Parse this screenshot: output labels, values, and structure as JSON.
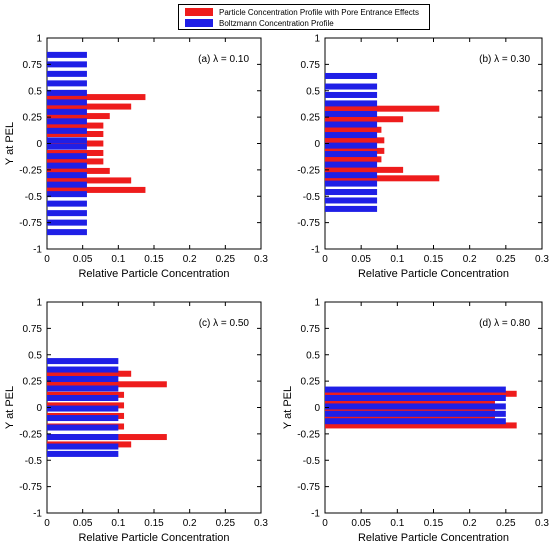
{
  "colors": {
    "pel": "#ee1c1c",
    "boltzmann": "#1f1fe6"
  },
  "legend": {
    "position": "top-center",
    "pel_label": "Particle Concentration Profile with Pore Entrance Effects",
    "boltzmann_label": "Boltzmann Concentration Profile"
  },
  "chart_data": [
    {
      "type": "bar",
      "orientation": "horizontal",
      "annotation": "(a) λ = 0.10",
      "xlabel": "Relative Particle Concentration",
      "ylabel": "Y at PEL",
      "xlim": [
        0,
        0.3
      ],
      "ylim": [
        -1,
        1
      ],
      "xticks": [
        "0",
        "0.05",
        "0.1",
        "0.15",
        "0.2",
        "0.25",
        "0.3"
      ],
      "yticks": [
        "1",
        "0.75",
        "0.5",
        "0.25",
        "0",
        "-0.25",
        "-0.5",
        "-0.75",
        "-1"
      ],
      "series": [
        {
          "name": "Particle Concentration Profile with Pore Entrance Effects",
          "y": [
            0.44,
            0.35,
            0.26,
            0.17,
            0.09,
            0.0,
            -0.09,
            -0.17,
            -0.26,
            -0.35,
            -0.44
          ],
          "values": [
            0.138,
            0.118,
            0.088,
            0.079,
            0.079,
            0.079,
            0.079,
            0.079,
            0.088,
            0.118,
            0.138
          ]
        },
        {
          "name": "Boltzmann Concentration Profile",
          "y": [
            0.84,
            0.75,
            0.66,
            0.57,
            0.48,
            0.39,
            0.3,
            0.21,
            0.12,
            0.03,
            -0.03,
            -0.12,
            -0.21,
            -0.3,
            -0.39,
            -0.48,
            -0.57,
            -0.66,
            -0.75,
            -0.84
          ],
          "values": [
            0.056,
            0.056,
            0.056,
            0.056,
            0.056,
            0.056,
            0.056,
            0.056,
            0.056,
            0.056,
            0.056,
            0.056,
            0.056,
            0.056,
            0.056,
            0.056,
            0.056,
            0.056,
            0.056,
            0.056
          ]
        }
      ]
    },
    {
      "type": "bar",
      "orientation": "horizontal",
      "annotation": "(b) λ = 0.30",
      "xlabel": "Relative Particle Concentration",
      "ylabel": "",
      "xlim": [
        0,
        0.3
      ],
      "ylim": [
        -1,
        1
      ],
      "xticks": [
        "0",
        "0.05",
        "0.1",
        "0.15",
        "0.2",
        "0.25",
        "0.3"
      ],
      "yticks": [
        "1",
        "0.75",
        "0.5",
        "0.25",
        "0",
        "-0.25",
        "-0.5",
        "-0.75",
        "-1"
      ],
      "series": [
        {
          "name": "Particle Concentration Profile with Pore Entrance Effects",
          "y": [
            0.33,
            0.23,
            0.13,
            0.03,
            -0.07,
            -0.15,
            -0.25,
            -0.33
          ],
          "values": [
            0.158,
            0.108,
            0.078,
            0.082,
            0.082,
            0.078,
            0.108,
            0.158
          ]
        },
        {
          "name": "Boltzmann Concentration Profile",
          "y": [
            0.64,
            0.54,
            0.46,
            0.38,
            0.28,
            0.18,
            0.08,
            -0.02,
            -0.1,
            -0.2,
            -0.3,
            -0.38,
            -0.46,
            -0.54,
            -0.62
          ],
          "values": [
            0.072,
            0.072,
            0.072,
            0.072,
            0.072,
            0.072,
            0.072,
            0.072,
            0.072,
            0.072,
            0.072,
            0.072,
            0.072,
            0.072,
            0.072
          ]
        }
      ]
    },
    {
      "type": "bar",
      "orientation": "horizontal",
      "annotation": "(c) λ = 0.50",
      "xlabel": "Relative Particle Concentration",
      "ylabel": "Y at PEL",
      "xlim": [
        0,
        0.3
      ],
      "ylim": [
        -1,
        1
      ],
      "xticks": [
        "0",
        "0.05",
        "0.1",
        "0.15",
        "0.2",
        "0.25",
        "0.3"
      ],
      "yticks": [
        "1",
        "0.75",
        "0.5",
        "0.25",
        "0",
        "-0.25",
        "-0.5",
        "-0.75",
        "-1"
      ],
      "series": [
        {
          "name": "Particle Concentration Profile with Pore Entrance Effects",
          "y": [
            0.32,
            0.22,
            0.12,
            0.02,
            -0.08,
            -0.18,
            -0.28,
            -0.35
          ],
          "values": [
            0.118,
            0.168,
            0.108,
            0.108,
            0.108,
            0.108,
            0.168,
            0.118
          ]
        },
        {
          "name": "Boltzmann Concentration Profile",
          "y": [
            0.44,
            0.36,
            0.27,
            0.18,
            0.09,
            -0.01,
            -0.1,
            -0.19,
            -0.28,
            -0.37,
            -0.44
          ],
          "values": [
            0.1,
            0.1,
            0.1,
            0.1,
            0.1,
            0.1,
            0.1,
            0.1,
            0.1,
            0.1,
            0.1
          ]
        }
      ]
    },
    {
      "type": "bar",
      "orientation": "horizontal",
      "annotation": "(d) λ = 0.80",
      "xlabel": "Relative Particle Concentration",
      "ylabel": "Y at PEL",
      "xlim": [
        0,
        0.3
      ],
      "ylim": [
        -1,
        1
      ],
      "xticks": [
        "0",
        "0.05",
        "0.1",
        "0.15",
        "0.2",
        "0.25",
        "0.3"
      ],
      "yticks": [
        "1",
        "0.75",
        "0.5",
        "0.25",
        "0",
        "-0.25",
        "-0.5",
        "-0.75",
        "-1"
      ],
      "series": [
        {
          "name": "Particle Concentration Profile with Pore Entrance Effects",
          "y": [
            0.13,
            0.05,
            -0.02,
            -0.1,
            -0.17
          ],
          "values": [
            0.265,
            0.235,
            0.235,
            0.235,
            0.265
          ]
        },
        {
          "name": "Boltzmann Concentration Profile",
          "y": [
            0.17,
            0.09,
            0.01,
            -0.06,
            -0.13
          ],
          "values": [
            0.25,
            0.25,
            0.25,
            0.25,
            0.25
          ]
        }
      ]
    }
  ]
}
